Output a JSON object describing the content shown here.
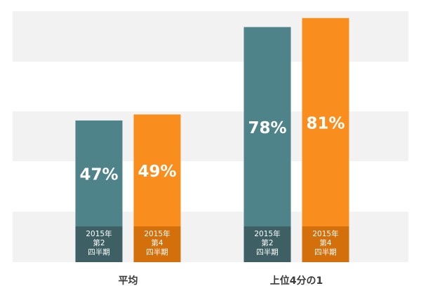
{
  "chart_data": {
    "type": "bar",
    "categories": [
      "平均",
      "上位4分の1"
    ],
    "series": [
      {
        "label_lines": [
          "2015年",
          "第2",
          "四半期"
        ],
        "values": [
          47,
          78
        ]
      },
      {
        "label_lines": [
          "2015年",
          "第4",
          "四半期"
        ],
        "values": [
          49,
          81
        ]
      }
    ],
    "value_labels": [
      [
        "47%",
        "78%"
      ],
      [
        "49%",
        "81%"
      ]
    ],
    "ylim": [
      0,
      100
    ],
    "grid": "alternating horizontal bands",
    "legend": "none (period labels inside bar bottoms)",
    "colors": {
      "series": [
        "#4d8389",
        "#f98e1e"
      ],
      "label_box": [
        "#3e5f64",
        "#d4700c"
      ],
      "band": "#f2f2f2",
      "category_text": "#3a3a3a"
    }
  }
}
